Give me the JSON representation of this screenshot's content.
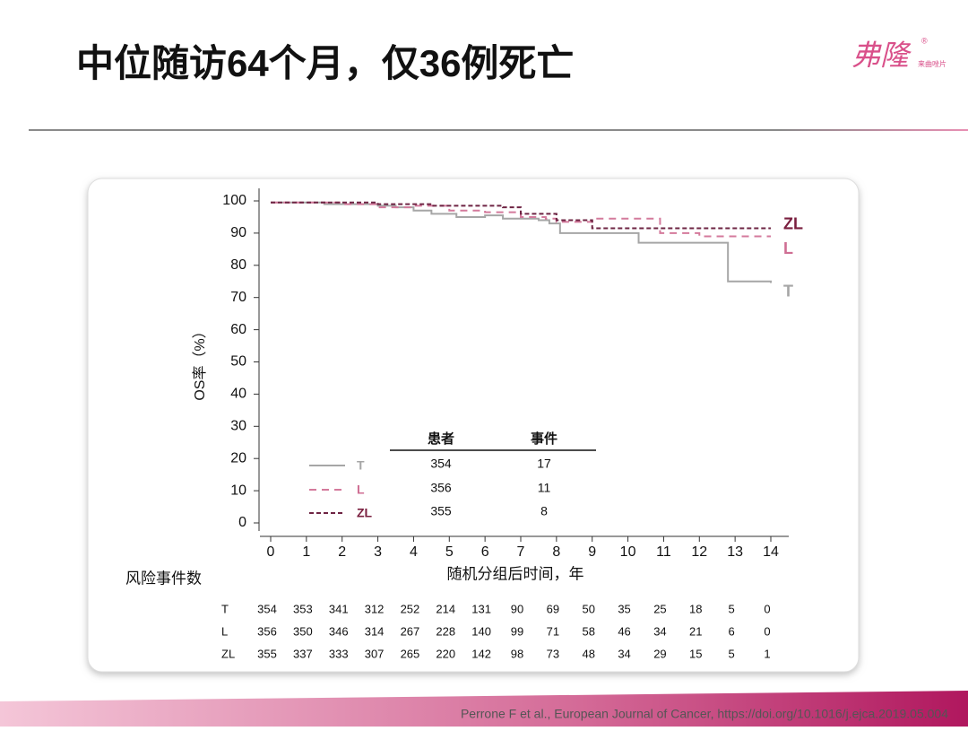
{
  "header": {
    "title": "中位随访64个月，仅36例死亡",
    "logo": "弗隆",
    "logo_mark": "®",
    "logo_sub": "来曲唑片"
  },
  "chart_data": {
    "type": "line",
    "step": true,
    "ylabel": "OS率（%）",
    "xlabel": "随机分组后时间，年",
    "xlim": [
      0,
      14
    ],
    "xticks": [
      0,
      1,
      2,
      3,
      4,
      5,
      6,
      7,
      8,
      9,
      10,
      11,
      12,
      13,
      14
    ],
    "ylim": [
      0,
      100
    ],
    "yticks": [
      0,
      10,
      20,
      30,
      40,
      50,
      60,
      70,
      80,
      90,
      100
    ],
    "series": [
      {
        "name": "T",
        "color": "#a6a6a6",
        "dash": "none",
        "label_color": "#a6a6a6",
        "x": [
          0,
          1.5,
          3,
          3.5,
          4,
          4.5,
          5.2,
          6,
          6.5,
          7.5,
          7.8,
          8.1,
          10.3,
          12.8,
          14
        ],
        "values": [
          99.5,
          99,
          98.5,
          98,
          97,
          96,
          95,
          95.5,
          94.5,
          94,
          93,
          90,
          87,
          75,
          74.5
        ]
      },
      {
        "name": "L",
        "color": "#d47a9c",
        "dash": "8 6",
        "label_color": "#cf6e93",
        "x": [
          0,
          2,
          3,
          4,
          5,
          6,
          7,
          7.7,
          8,
          9,
          9.5,
          10.9,
          12,
          14
        ],
        "values": [
          99.5,
          99,
          98,
          98.5,
          97,
          96.5,
          95,
          94.5,
          93.5,
          94.5,
          94.5,
          90,
          89,
          89
        ]
      },
      {
        "name": "ZL",
        "color": "#6e2443",
        "dash": "5 3",
        "label_color": "#7a1f3f",
        "x": [
          0,
          3,
          4.5,
          6.5,
          7,
          8,
          9,
          14
        ],
        "values": [
          99.5,
          99,
          98.5,
          98,
          96,
          94,
          91.5,
          91.5
        ]
      }
    ],
    "legend_table": {
      "headers": [
        "患者",
        "事件"
      ],
      "rows": [
        [
          354,
          17
        ],
        [
          356,
          11
        ],
        [
          355,
          8
        ]
      ]
    },
    "risk_table": {
      "title": "风险事件数",
      "rows": [
        [
          354,
          353,
          341,
          312,
          252,
          214,
          131,
          90,
          69,
          50,
          35,
          25,
          18,
          5,
          0
        ],
        [
          356,
          350,
          346,
          314,
          267,
          228,
          140,
          99,
          71,
          58,
          46,
          34,
          21,
          6,
          0
        ],
        [
          355,
          337,
          333,
          307,
          265,
          220,
          142,
          98,
          73,
          48,
          34,
          29,
          15,
          5,
          1
        ]
      ]
    }
  },
  "footer": {
    "citation": "Perrone F et al., European Journal of Cancer, https://doi.org/10.1016/j.ejca.2019.05.004"
  }
}
